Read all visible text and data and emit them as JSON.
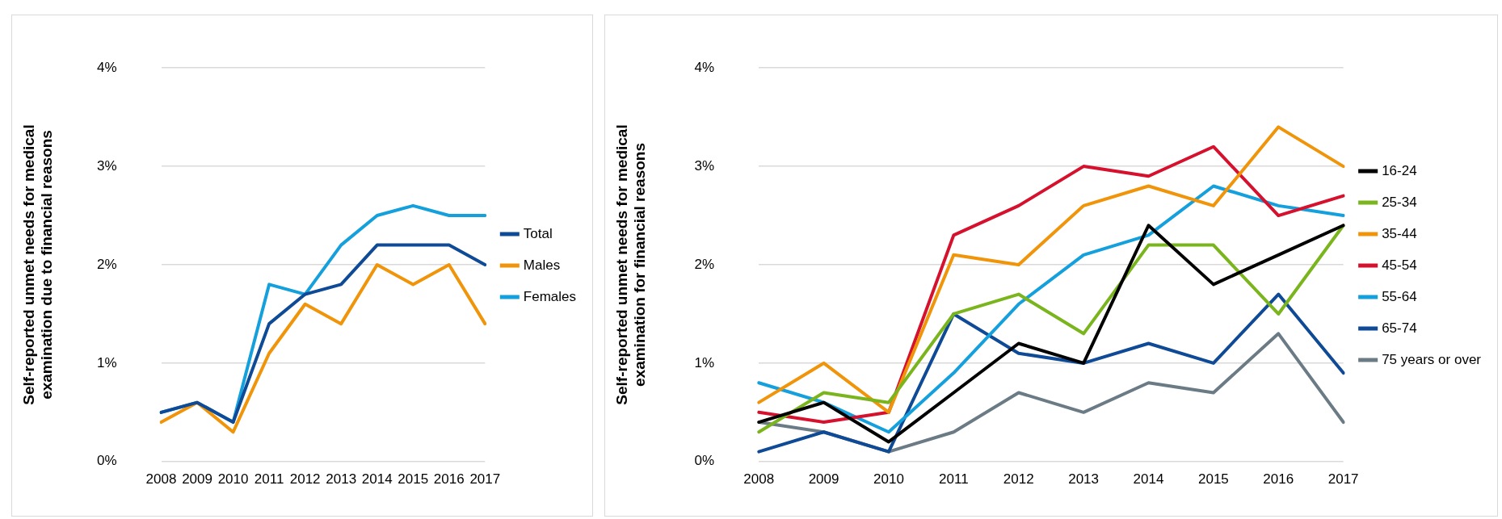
{
  "chart_data": [
    {
      "type": "line",
      "ylabel": "Self-reported unmet needs for medical examination due to financial reasons",
      "categories": [
        "2008",
        "2009",
        "2010",
        "2011",
        "2012",
        "2013",
        "2014",
        "2015",
        "2016",
        "2017"
      ],
      "series": [
        {
          "name": "Total",
          "color": "#0e4a96",
          "values": [
            0.5,
            0.6,
            0.4,
            1.4,
            1.7,
            1.8,
            2.2,
            2.2,
            2.2,
            2.0
          ]
        },
        {
          "name": "Males",
          "color": "#f0940a",
          "values": [
            0.4,
            0.6,
            0.3,
            1.1,
            1.6,
            1.4,
            2.0,
            1.8,
            2.0,
            1.4
          ]
        },
        {
          "name": "Females",
          "color": "#14a0dc",
          "values": [
            0.5,
            0.6,
            0.4,
            1.8,
            1.7,
            2.2,
            2.5,
            2.6,
            2.5,
            2.5
          ]
        }
      ],
      "ylim": [
        0,
        4
      ],
      "yticks": [
        {
          "value": 0,
          "label": "0%"
        },
        {
          "value": 1,
          "label": "1%"
        },
        {
          "value": 2,
          "label": "2%"
        },
        {
          "value": 3,
          "label": "3%"
        },
        {
          "value": 4,
          "label": "4%"
        }
      ],
      "grid": "y",
      "legend": "right",
      "marker": "none"
    },
    {
      "type": "line",
      "ylabel": "Self-reported unmet needs for medical examination for financial reasons",
      "categories": [
        "2008",
        "2009",
        "2010",
        "2011",
        "2012",
        "2013",
        "2014",
        "2015",
        "2016",
        "2017"
      ],
      "series": [
        {
          "name": "16-24",
          "color": "#000000",
          "values": [
            0.4,
            0.6,
            0.2,
            0.7,
            1.2,
            1.0,
            2.4,
            1.8,
            2.1,
            2.4
          ]
        },
        {
          "name": "25-34",
          "color": "#7ab51d",
          "values": [
            0.3,
            0.7,
            0.6,
            1.5,
            1.7,
            1.3,
            2.2,
            2.2,
            1.5,
            2.4
          ]
        },
        {
          "name": "35-44",
          "color": "#f0940a",
          "values": [
            0.6,
            1.0,
            0.5,
            2.1,
            2.0,
            2.6,
            2.8,
            2.6,
            3.4,
            3.0
          ]
        },
        {
          "name": "45-54",
          "color": "#d6112e",
          "values": [
            0.5,
            0.4,
            0.5,
            2.3,
            2.6,
            3.0,
            2.9,
            3.2,
            2.5,
            2.7
          ]
        },
        {
          "name": "55-64",
          "color": "#14a0dc",
          "values": [
            0.8,
            0.6,
            0.3,
            0.9,
            1.6,
            2.1,
            2.3,
            2.8,
            2.6,
            2.5
          ]
        },
        {
          "name": "65-74",
          "color": "#0e4a96",
          "values": [
            0.1,
            0.3,
            0.1,
            1.5,
            1.1,
            1.0,
            1.2,
            1.0,
            1.7,
            0.9
          ]
        },
        {
          "name": "75 years or over",
          "color": "#6b7b85",
          "values": [
            0.4,
            0.3,
            0.1,
            0.3,
            0.7,
            0.5,
            0.8,
            0.7,
            1.3,
            0.4
          ]
        }
      ],
      "ylim": [
        0,
        4
      ],
      "yticks": [
        {
          "value": 0,
          "label": "0%"
        },
        {
          "value": 1,
          "label": "1%"
        },
        {
          "value": 2,
          "label": "2%"
        },
        {
          "value": 3,
          "label": "3%"
        },
        {
          "value": 4,
          "label": "4%"
        }
      ],
      "grid": "y",
      "legend": "right",
      "marker": "none"
    }
  ]
}
